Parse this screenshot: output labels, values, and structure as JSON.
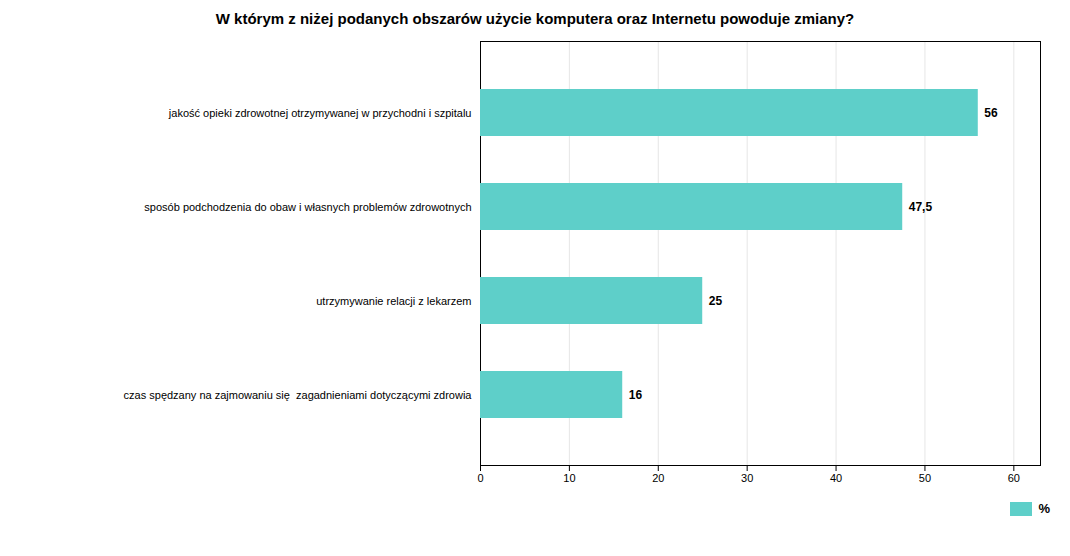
{
  "chart_data": {
    "type": "bar",
    "orientation": "horizontal",
    "title": "W którym z niżej podanych obszarów użycie komputera oraz Internetu powoduje zmiany?",
    "categories": [
      "czas spędzany na zajmowaniu się  zagadnieniami dotyczącymi zdrowia",
      "utrzymywanie relacji z lekarzem",
      "sposób podchodzenia do obaw i własnych problemów zdrowotnych",
      "jakość opieki zdrowotnej otrzymywanej w przychodni i szpitalu"
    ],
    "series": [
      {
        "name": "%",
        "color": "#5ecfc9",
        "values": [
          16,
          25,
          47.5,
          56
        ],
        "value_labels": [
          "16",
          "25",
          "47,5",
          "56"
        ]
      }
    ],
    "xlim": [
      0,
      63
    ],
    "xticks": [
      0,
      10,
      20,
      30,
      40,
      50,
      60
    ],
    "grid": true,
    "data_labels": true,
    "legend": "lower right"
  }
}
